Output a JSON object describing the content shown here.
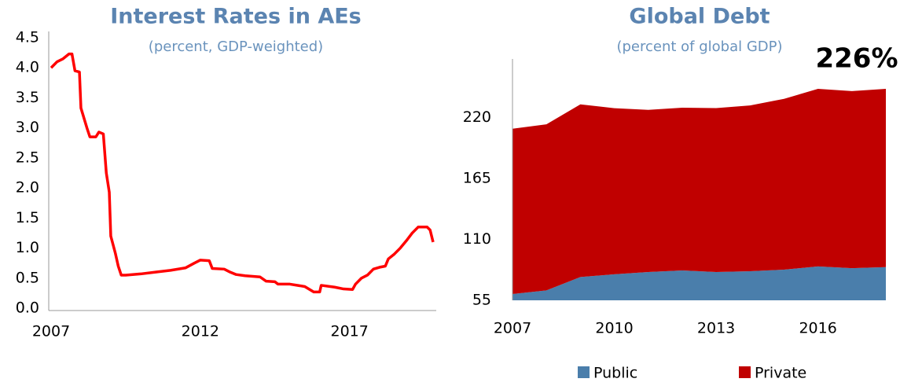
{
  "chart_data": [
    {
      "type": "line",
      "title": "Interest Rates in AEs",
      "subtitle": "(percent, GDP-weighted)",
      "color": "#ff0000",
      "x": [
        2007.0,
        2007.2,
        2007.4,
        2007.6,
        2007.7,
        2007.8,
        2007.95,
        2008.0,
        2008.2,
        2008.3,
        2008.5,
        2008.6,
        2008.75,
        2008.85,
        2008.95,
        2009.0,
        2009.15,
        2009.25,
        2009.35,
        2009.5,
        2010.0,
        2010.5,
        2011.0,
        2011.5,
        2011.8,
        2012.0,
        2012.3,
        2012.4,
        2012.8,
        2013.0,
        2013.2,
        2013.5,
        2014.0,
        2014.2,
        2014.5,
        2014.6,
        2015.0,
        2015.5,
        2015.8,
        2016.0,
        2016.05,
        2016.5,
        2016.8,
        2017.1,
        2017.2,
        2017.4,
        2017.6,
        2017.8,
        2018.0,
        2018.2,
        2018.3,
        2018.5,
        2018.7,
        2018.9,
        2019.1,
        2019.3,
        2019.6,
        2019.7,
        2019.8
      ],
      "values": [
        4.0,
        4.1,
        4.15,
        4.23,
        4.23,
        3.95,
        3.93,
        3.33,
        3.0,
        2.85,
        2.85,
        2.93,
        2.9,
        2.25,
        1.93,
        1.2,
        0.92,
        0.7,
        0.55,
        0.55,
        0.57,
        0.6,
        0.63,
        0.67,
        0.75,
        0.8,
        0.79,
        0.66,
        0.65,
        0.6,
        0.56,
        0.54,
        0.52,
        0.45,
        0.44,
        0.4,
        0.4,
        0.36,
        0.27,
        0.27,
        0.38,
        0.35,
        0.32,
        0.31,
        0.4,
        0.5,
        0.55,
        0.65,
        0.68,
        0.7,
        0.82,
        0.9,
        1.0,
        1.12,
        1.25,
        1.35,
        1.35,
        1.3,
        1.1
      ],
      "xlim": [
        2007,
        2019.8
      ],
      "xticks": [
        2007,
        2012,
        2017
      ],
      "ylim": [
        0,
        4.5
      ],
      "yticks": [
        {
          "value": 0,
          "label": "0.0"
        },
        0.5,
        {
          "value": 1,
          "label": "1.0"
        },
        1.5,
        {
          "value": 2,
          "label": "2.0"
        },
        2.5,
        {
          "value": 3,
          "label": "3.0"
        },
        3.5,
        {
          "value": 4,
          "label": "4.0"
        },
        4.5
      ]
    },
    {
      "type": "area",
      "title": "Global Debt",
      "subtitle": "(percent of global GDP)",
      "annotation": "226%",
      "x": [
        2007,
        2008,
        2009,
        2010,
        2011,
        2012,
        2013,
        2014,
        2015,
        2016,
        2017,
        2018
      ],
      "series": [
        {
          "name": "Public",
          "color": "#4a7eab",
          "values": [
            60.7,
            64,
            76,
            78.5,
            80.6,
            82,
            80.6,
            81.3,
            82.7,
            85.6,
            84,
            85
          ]
        },
        {
          "name": "Private",
          "color": "#c00000",
          "values": [
            149.3,
            150,
            156,
            150,
            146.4,
            147,
            148,
            149.7,
            154.3,
            160.4,
            160,
            161
          ]
        }
      ],
      "xlim": [
        2007,
        2018
      ],
      "xticks": [
        2007,
        2010,
        2013,
        2016
      ],
      "ylim": [
        55,
        273
      ],
      "yticks": [
        55,
        110,
        165,
        220
      ]
    }
  ]
}
